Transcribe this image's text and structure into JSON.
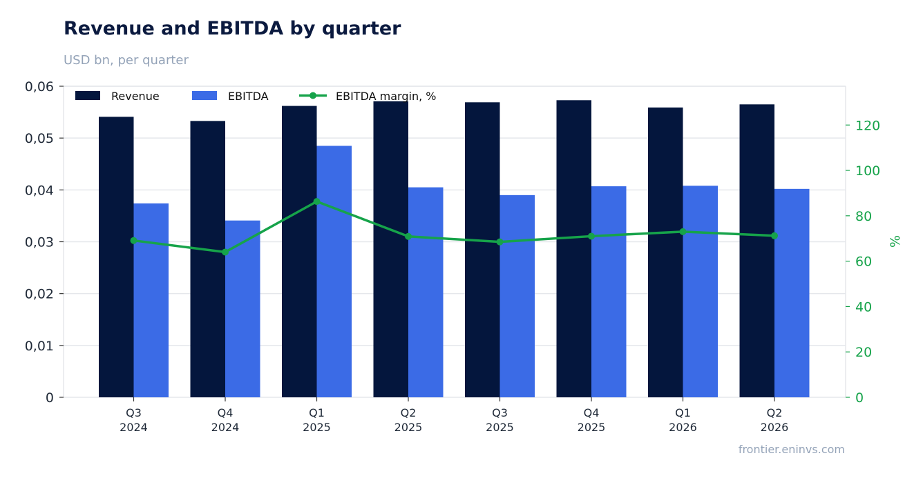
{
  "header": {
    "title": "Revenue and EBITDA by quarter",
    "subtitle": "USD bn, per quarter"
  },
  "footer": {
    "source": "frontier.eninvs.com"
  },
  "colors": {
    "revenue": "#04163d",
    "ebitda": "#3b6be6",
    "margin": "#16a34a",
    "grid": "#e5e7eb",
    "text": "#1f2937"
  },
  "chart_data": {
    "type": "bar",
    "categories": [
      [
        "Q3",
        "2024"
      ],
      [
        "Q4",
        "2024"
      ],
      [
        "Q1",
        "2025"
      ],
      [
        "Q2",
        "2025"
      ],
      [
        "Q3",
        "2025"
      ],
      [
        "Q4",
        "2025"
      ],
      [
        "Q1",
        "2026"
      ],
      [
        "Q2",
        "2026"
      ]
    ],
    "series": [
      {
        "name": "Revenue",
        "type": "bar",
        "axis": "left",
        "values": [
          0.0541,
          0.0533,
          0.0562,
          0.0571,
          0.0569,
          0.0573,
          0.0559,
          0.0565
        ]
      },
      {
        "name": "EBITDA",
        "type": "bar",
        "axis": "left",
        "values": [
          0.0374,
          0.0341,
          0.0485,
          0.0405,
          0.039,
          0.0407,
          0.0408,
          0.0402
        ]
      },
      {
        "name": "EBITDA margin, %",
        "type": "line",
        "axis": "right",
        "values": [
          69.1,
          64.0,
          86.3,
          70.9,
          68.5,
          71.0,
          73.0,
          71.2
        ]
      }
    ],
    "y_left": {
      "min": 0,
      "max": 0.06,
      "ticks": [
        "0",
        "0,01",
        "0,02",
        "0,03",
        "0,04",
        "0,05",
        "0,06"
      ],
      "tick_values": [
        0,
        0.01,
        0.02,
        0.03,
        0.04,
        0.05,
        0.06
      ]
    },
    "y_right": {
      "label": "%",
      "min": 0,
      "max": 137.1,
      "ticks": [
        "0",
        "20",
        "40",
        "60",
        "80",
        "100",
        "120"
      ],
      "tick_values": [
        0,
        20,
        40,
        60,
        80,
        100,
        120
      ]
    },
    "grid": true,
    "legend_position": "top-left"
  }
}
